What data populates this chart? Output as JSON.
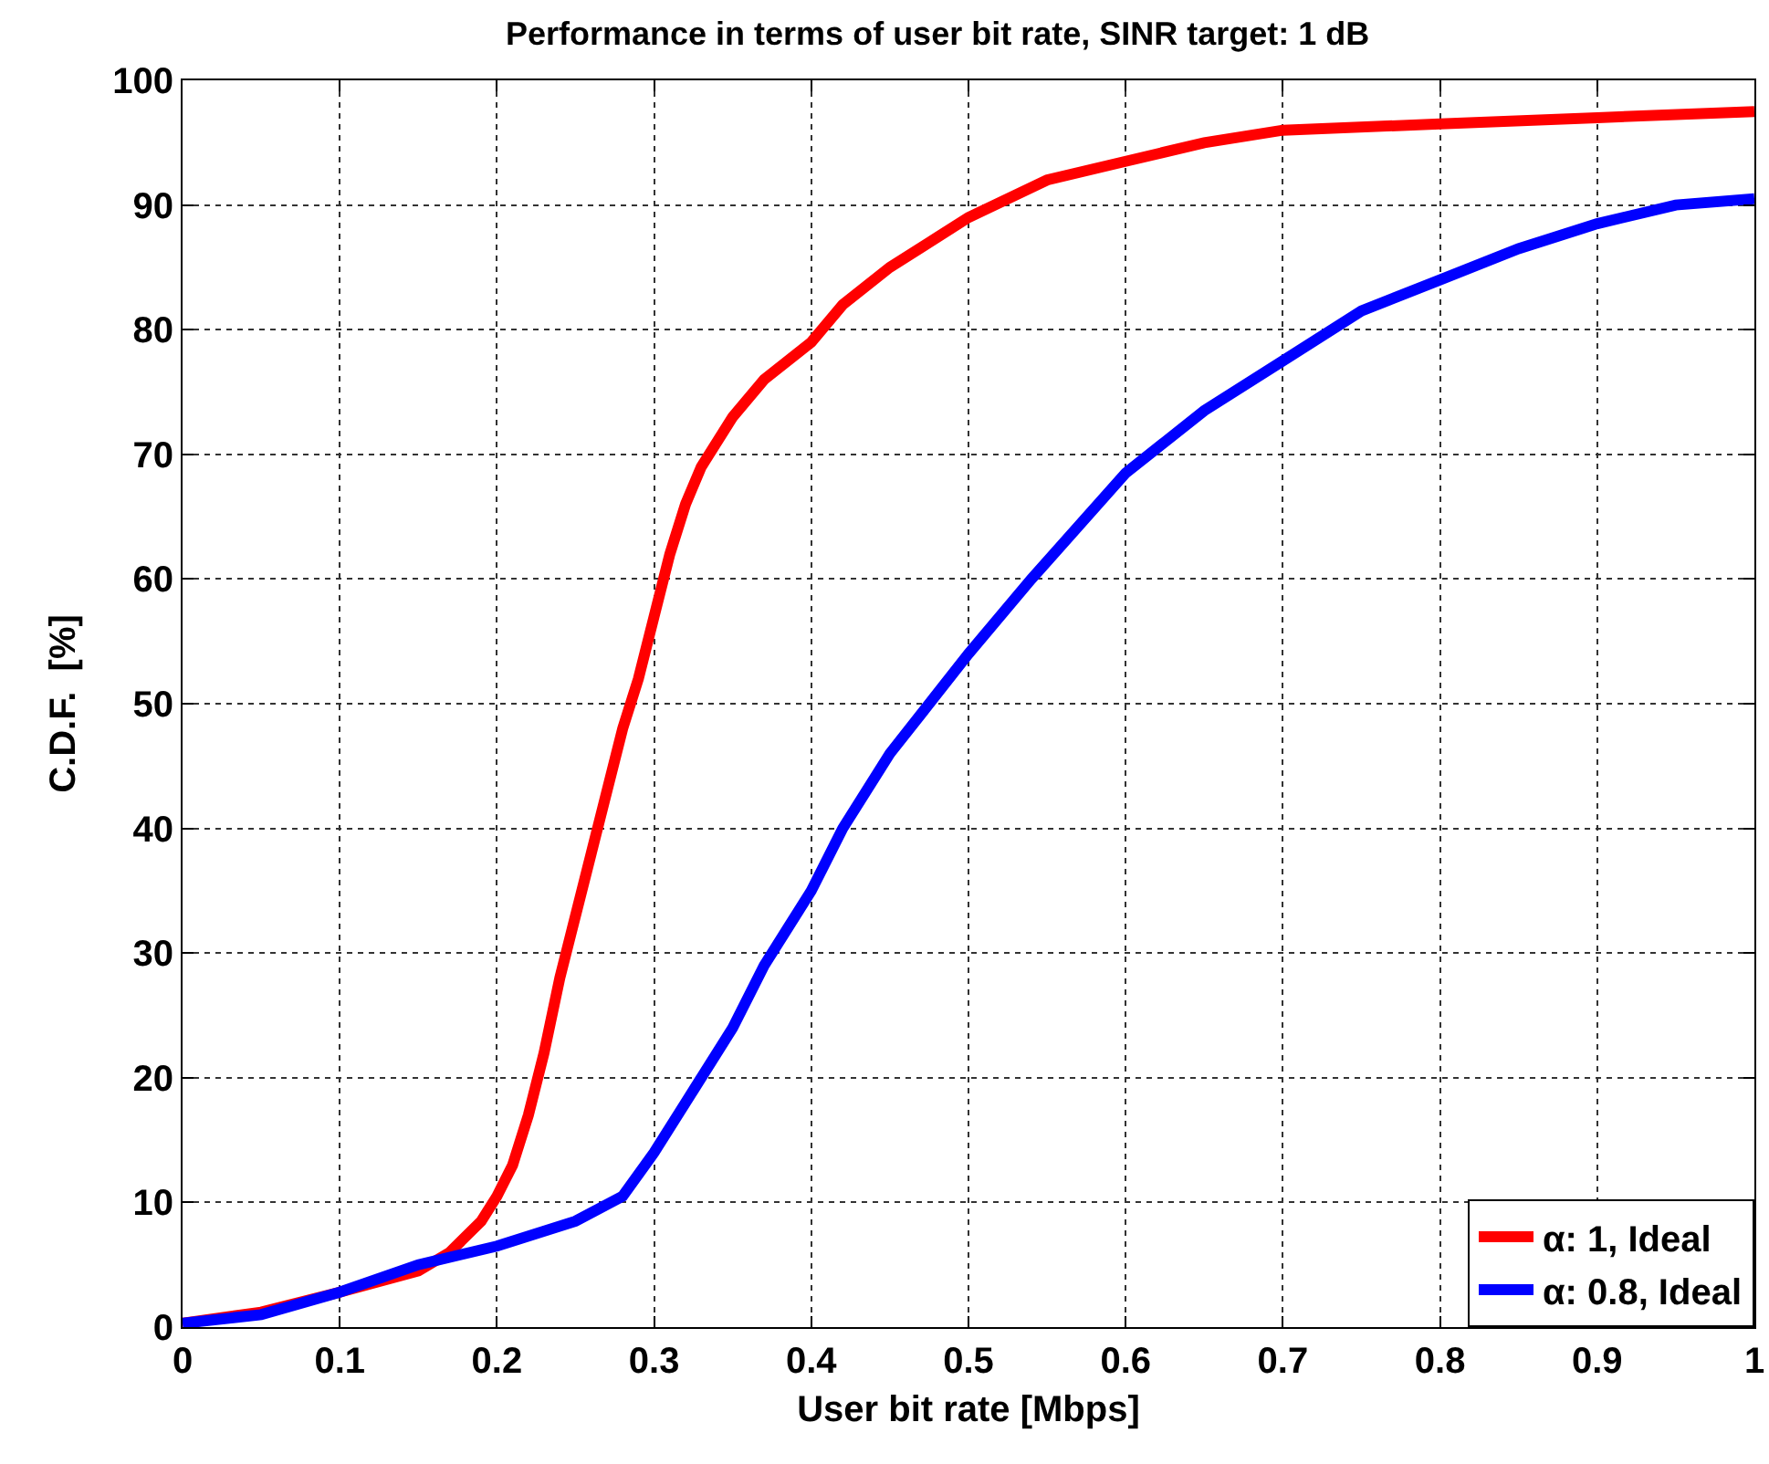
{
  "chart_data": {
    "type": "line",
    "title": "Performance in terms of user bit rate, SINR target: 1 dB",
    "xlabel": "User bit rate [Mbps]",
    "ylabel": "C.D.F.  [%]",
    "series": [
      {
        "name": "α: 1, Ideal",
        "color": "#ff0000",
        "x": [
          0,
          0.05,
          0.1,
          0.15,
          0.17,
          0.19,
          0.2,
          0.21,
          0.22,
          0.23,
          0.24,
          0.25,
          0.26,
          0.27,
          0.28,
          0.29,
          0.3,
          0.31,
          0.32,
          0.33,
          0.35,
          0.37,
          0.4,
          0.42,
          0.45,
          0.5,
          0.55,
          0.6,
          0.65,
          0.7,
          0.8,
          0.9,
          1
        ],
        "values": [
          0.3,
          1.2,
          2.8,
          4.5,
          6,
          8.5,
          10.5,
          13,
          17,
          22,
          28,
          33,
          38,
          43,
          48,
          52,
          57,
          62,
          66,
          69,
          73,
          76,
          79,
          82,
          85,
          89,
          92,
          93.5,
          95,
          96,
          96.5,
          97,
          97.5
        ]
      },
      {
        "name": "α: 0.8, Ideal",
        "color": "#0000ff",
        "x": [
          0,
          0.05,
          0.1,
          0.15,
          0.2,
          0.25,
          0.28,
          0.3,
          0.32,
          0.35,
          0.37,
          0.4,
          0.42,
          0.45,
          0.5,
          0.54,
          0.6,
          0.65,
          0.7,
          0.75,
          0.8,
          0.85,
          0.9,
          0.95,
          1
        ],
        "values": [
          0.3,
          1,
          2.8,
          5,
          6.5,
          8.5,
          10.5,
          14,
          18,
          24,
          29,
          35,
          40,
          46,
          54,
          60,
          68.5,
          73.5,
          77.5,
          81.5,
          84,
          86.5,
          88.5,
          90,
          90.5
        ]
      }
    ],
    "xlim": [
      0,
      1
    ],
    "xticks": [
      0,
      0.1,
      0.2,
      0.3,
      0.4,
      0.5,
      0.6,
      0.7,
      0.8,
      0.9,
      1
    ],
    "ylim": [
      0,
      100
    ],
    "yticks": [
      0,
      10,
      20,
      30,
      40,
      50,
      60,
      70,
      80,
      90,
      100
    ],
    "grid": true,
    "legend": "bottom right",
    "marker": "none"
  }
}
